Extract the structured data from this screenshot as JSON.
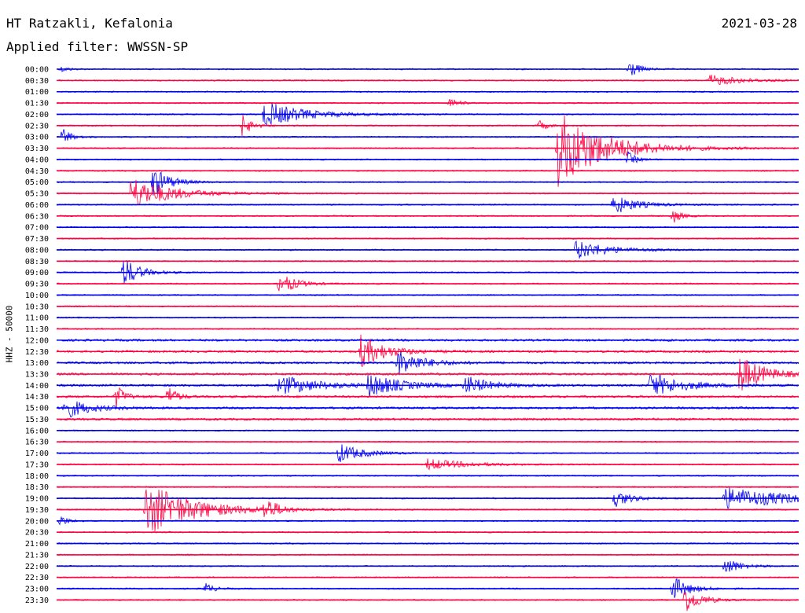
{
  "header": {
    "station": "HT Ratzakli, Kefalonia",
    "date": "2021-03-28",
    "filter": "Applied filter: WWSSN-SP"
  },
  "chart_data": {
    "type": "line",
    "ylabel": "HHZ - 50000",
    "row_labels": [
      "00:00",
      "00:30",
      "01:00",
      "01:30",
      "02:00",
      "02:30",
      "03:00",
      "03:30",
      "04:00",
      "04:30",
      "05:00",
      "05:30",
      "06:00",
      "06:30",
      "07:00",
      "07:30",
      "08:00",
      "08:30",
      "09:00",
      "09:30",
      "10:00",
      "10:30",
      "11:00",
      "11:30",
      "12:00",
      "12:30",
      "13:00",
      "13:30",
      "14:00",
      "14:30",
      "15:00",
      "15:30",
      "16:00",
      "16:30",
      "17:00",
      "17:30",
      "18:00",
      "18:30",
      "19:00",
      "19:30",
      "20:00",
      "20:30",
      "21:00",
      "21:30",
      "22:00",
      "22:30",
      "23:00",
      "23:30"
    ],
    "colors": [
      "#0000ee",
      "#ff0040"
    ],
    "events": [
      {
        "row": 0,
        "x": 0.77,
        "amp": 1.0,
        "dur": 0.012
      },
      {
        "row": 0,
        "x": 0.006,
        "amp": 0.25,
        "dur": 0.01
      },
      {
        "row": 1,
        "x": 0.88,
        "amp": 0.5,
        "dur": 0.04
      },
      {
        "row": 3,
        "x": 0.53,
        "amp": 0.5,
        "dur": 0.01
      },
      {
        "row": 4,
        "x": 0.28,
        "amp": 1.2,
        "dur": 0.05
      },
      {
        "row": 5,
        "x": 0.25,
        "amp": 1.0,
        "dur": 0.012
      },
      {
        "row": 5,
        "x": 0.65,
        "amp": 0.5,
        "dur": 0.01
      },
      {
        "row": 6,
        "x": 0.008,
        "amp": 0.9,
        "dur": 0.01
      },
      {
        "row": 7,
        "x": 0.675,
        "amp": 3.5,
        "dur": 0.06
      },
      {
        "row": 8,
        "x": 0.77,
        "amp": 0.7,
        "dur": 0.01
      },
      {
        "row": 10,
        "x": 0.13,
        "amp": 1.5,
        "dur": 0.02
      },
      {
        "row": 11,
        "x": 0.1,
        "amp": 1.5,
        "dur": 0.05
      },
      {
        "row": 12,
        "x": 0.75,
        "amp": 0.9,
        "dur": 0.03
      },
      {
        "row": 13,
        "x": 0.83,
        "amp": 0.7,
        "dur": 0.01
      },
      {
        "row": 16,
        "x": 0.7,
        "amp": 0.9,
        "dur": 0.04
      },
      {
        "row": 18,
        "x": 0.09,
        "amp": 1.4,
        "dur": 0.02
      },
      {
        "row": 19,
        "x": 0.3,
        "amp": 1.1,
        "dur": 0.02
      },
      {
        "row": 25,
        "x": 0.41,
        "amp": 1.5,
        "dur": 0.03
      },
      {
        "row": 26,
        "x": 0.46,
        "amp": 1.2,
        "dur": 0.03
      },
      {
        "row": 27,
        "x": 0.92,
        "amp": 1.8,
        "dur": 0.03
      },
      {
        "row": 28,
        "x": 0.3,
        "amp": 0.9,
        "dur": 0.05
      },
      {
        "row": 28,
        "x": 0.42,
        "amp": 1.1,
        "dur": 0.04
      },
      {
        "row": 28,
        "x": 0.55,
        "amp": 0.9,
        "dur": 0.03
      },
      {
        "row": 28,
        "x": 0.8,
        "amp": 1.1,
        "dur": 0.04
      },
      {
        "row": 29,
        "x": 0.08,
        "amp": 1.2,
        "dur": 0.01
      },
      {
        "row": 29,
        "x": 0.15,
        "amp": 1.1,
        "dur": 0.01
      },
      {
        "row": 30,
        "x": 0.01,
        "amp": 1.0,
        "dur": 0.03
      },
      {
        "row": 34,
        "x": 0.38,
        "amp": 0.9,
        "dur": 0.03
      },
      {
        "row": 35,
        "x": 0.5,
        "amp": 0.5,
        "dur": 0.05
      },
      {
        "row": 38,
        "x": 0.9,
        "amp": 1.0,
        "dur": 0.09
      },
      {
        "row": 38,
        "x": 0.75,
        "amp": 0.9,
        "dur": 0.02
      },
      {
        "row": 39,
        "x": 0.12,
        "amp": 2.5,
        "dur": 0.06
      },
      {
        "row": 39,
        "x": 0.28,
        "amp": 1.2,
        "dur": 0.02
      },
      {
        "row": 40,
        "x": 0.005,
        "amp": 0.5,
        "dur": 0.01
      },
      {
        "row": 44,
        "x": 0.9,
        "amp": 0.8,
        "dur": 0.02
      },
      {
        "row": 46,
        "x": 0.2,
        "amp": 0.6,
        "dur": 0.01
      },
      {
        "row": 46,
        "x": 0.83,
        "amp": 1.2,
        "dur": 0.02
      },
      {
        "row": 47,
        "x": 0.845,
        "amp": 1.3,
        "dur": 0.02
      }
    ]
  }
}
